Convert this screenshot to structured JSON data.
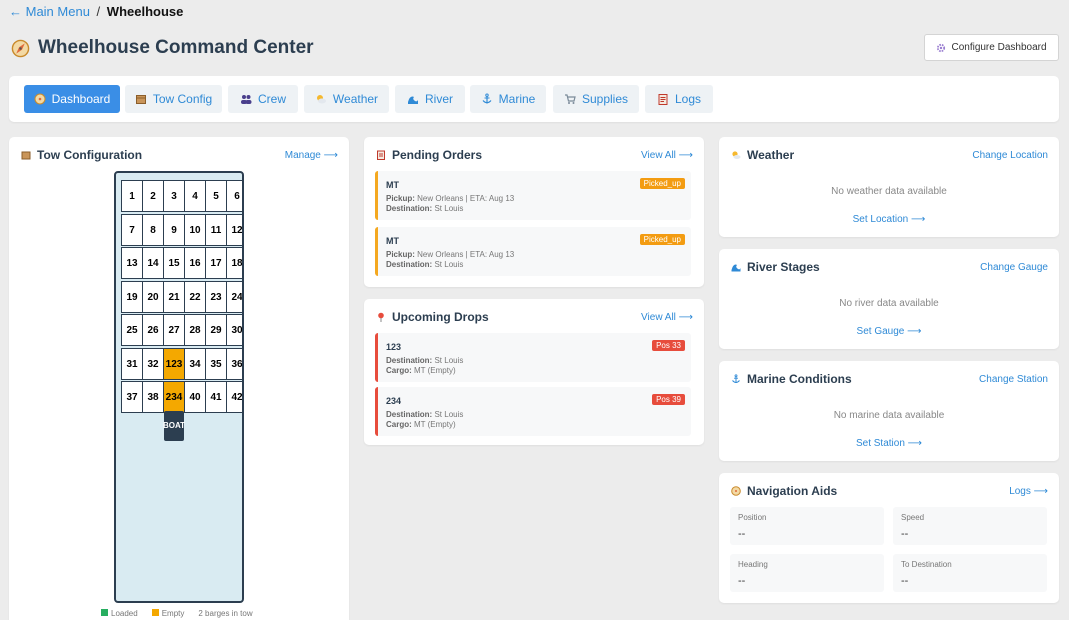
{
  "breadcrumb": {
    "back": "← Main Menu",
    "sep": "/",
    "current": "Wheelhouse"
  },
  "page": {
    "title": "Wheelhouse Command Center",
    "configure_label": "Configure Dashboard"
  },
  "colors": {
    "accent": "#3a8ee6",
    "link": "#2f8ad6",
    "pending": "#f39c12",
    "drop": "#e74c3c",
    "loaded": "#27ae60",
    "empty": "#f4a800"
  },
  "tabs": [
    {
      "label": "Dashboard",
      "icon": "compass-icon",
      "active": true
    },
    {
      "label": "Tow Config",
      "icon": "box-icon",
      "active": false
    },
    {
      "label": "Crew",
      "icon": "people-icon",
      "active": false
    },
    {
      "label": "Weather",
      "icon": "sun-cloud-icon",
      "active": false
    },
    {
      "label": "River",
      "icon": "wave-icon",
      "active": false
    },
    {
      "label": "Marine",
      "icon": "anchor-icon",
      "active": false
    },
    {
      "label": "Supplies",
      "icon": "cart-icon",
      "active": false
    },
    {
      "label": "Logs",
      "icon": "clipboard-icon",
      "active": false
    }
  ],
  "tow": {
    "title": "Tow Configuration",
    "link": "Manage ⟶",
    "rows": [
      [
        "1",
        "2",
        "3",
        "4",
        "5",
        "6"
      ],
      [
        "7",
        "8",
        "9",
        "10",
        "11",
        "12"
      ],
      [
        "13",
        "14",
        "15",
        "16",
        "17",
        "18"
      ],
      [
        "19",
        "20",
        "21",
        "22",
        "23",
        "24"
      ],
      [
        "25",
        "26",
        "27",
        "28",
        "29",
        "30"
      ],
      [
        "31",
        "32",
        "123",
        "34",
        "35",
        "36"
      ],
      [
        "37",
        "38",
        "234",
        "40",
        "41",
        "42"
      ]
    ],
    "highlighted": [
      "123",
      "234"
    ],
    "boat_label": "BOAT",
    "legend": {
      "loaded": "Loaded",
      "empty": "Empty",
      "count": "2 barges in tow"
    }
  },
  "pending": {
    "title": "Pending Orders",
    "link": "View All ⟶",
    "items": [
      {
        "name": "MT",
        "status": "Picked_up",
        "pickup_label": "Pickup:",
        "pickup": "New Orleans | ETA: Aug 13",
        "dest_label": "Destination:",
        "dest": "St Louis"
      },
      {
        "name": "MT",
        "status": "Picked_up",
        "pickup_label": "Pickup:",
        "pickup": "New Orleans | ETA: Aug 13",
        "dest_label": "Destination:",
        "dest": "St Louis"
      }
    ]
  },
  "drops": {
    "title": "Upcoming Drops",
    "link": "View All ⟶",
    "items": [
      {
        "name": "123",
        "pos": "Pos 33",
        "dest_label": "Destination:",
        "dest": "St Louis",
        "cargo_label": "Cargo:",
        "cargo": "MT (Empty)"
      },
      {
        "name": "234",
        "pos": "Pos 39",
        "dest_label": "Destination:",
        "dest": "St Louis",
        "cargo_label": "Cargo:",
        "cargo": "MT (Empty)"
      }
    ]
  },
  "weather": {
    "title": "Weather",
    "link": "Change Location",
    "empty": "No weather data available",
    "action": "Set Location ⟶"
  },
  "river": {
    "title": "River Stages",
    "link": "Change Gauge",
    "empty": "No river data available",
    "action": "Set Gauge ⟶"
  },
  "marine": {
    "title": "Marine Conditions",
    "link": "Change Station",
    "empty": "No marine data available",
    "action": "Set Station ⟶"
  },
  "navaids": {
    "title": "Navigation Aids",
    "link": "Logs ⟶",
    "cells": [
      {
        "label": "Position",
        "value": "--"
      },
      {
        "label": "Speed",
        "value": "--"
      },
      {
        "label": "Heading",
        "value": "--"
      },
      {
        "label": "To Destination",
        "value": "--"
      }
    ]
  }
}
